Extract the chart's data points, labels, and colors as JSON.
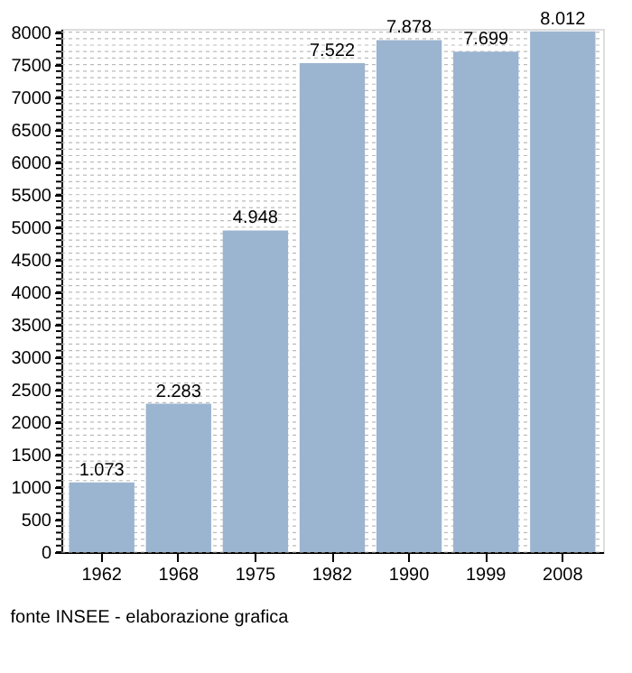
{
  "chart_data": {
    "type": "bar",
    "categories": [
      "1962",
      "1968",
      "1975",
      "1982",
      "1990",
      "1999",
      "2008"
    ],
    "values": [
      1073,
      2283,
      4948,
      7522,
      7878,
      7699,
      8012
    ],
    "value_labels": [
      "1.073",
      "2.283",
      "4.948",
      "7.522",
      "7.878",
      "7.699",
      "8.012"
    ],
    "color": "#9bb4d0",
    "ylim": [
      0,
      8050
    ],
    "yticks": [
      0,
      {
        "value": 100,
        "label": null
      },
      {
        "value": 200,
        "label": null
      },
      {
        "value": 300,
        "label": null
      },
      {
        "value": 400,
        "label": null
      },
      500,
      {
        "value": 600,
        "label": null
      },
      {
        "value": 700,
        "label": null
      },
      {
        "value": 800,
        "label": null
      },
      {
        "value": 900,
        "label": null
      },
      1000,
      {
        "value": 1100,
        "label": null
      },
      {
        "value": 1200,
        "label": null
      },
      {
        "value": 1300,
        "label": null
      },
      {
        "value": 1400,
        "label": null
      },
      1500,
      {
        "value": 1600,
        "label": null
      },
      {
        "value": 1700,
        "label": null
      },
      {
        "value": 1800,
        "label": null
      },
      {
        "value": 1900,
        "label": null
      },
      2000,
      {
        "value": 2100,
        "label": null
      },
      {
        "value": 2200,
        "label": null
      },
      {
        "value": 2300,
        "label": null
      },
      {
        "value": 2400,
        "label": null
      },
      2500,
      {
        "value": 2600,
        "label": null
      },
      {
        "value": 2700,
        "label": null
      },
      {
        "value": 2800,
        "label": null
      },
      {
        "value": 2900,
        "label": null
      },
      3000,
      {
        "value": 3100,
        "label": null
      },
      {
        "value": 3200,
        "label": null
      },
      {
        "value": 3300,
        "label": null
      },
      {
        "value": 3400,
        "label": null
      },
      3500,
      {
        "value": 3600,
        "label": null
      },
      {
        "value": 3700,
        "label": null
      },
      {
        "value": 3800,
        "label": null
      },
      {
        "value": 3900,
        "label": null
      },
      4000,
      {
        "value": 4100,
        "label": null
      },
      {
        "value": 4200,
        "label": null
      },
      {
        "value": 4300,
        "label": null
      },
      {
        "value": 4400,
        "label": null
      },
      4500,
      {
        "value": 4600,
        "label": null
      },
      {
        "value": 4700,
        "label": null
      },
      {
        "value": 4800,
        "label": null
      },
      {
        "value": 4900,
        "label": null
      },
      5000,
      {
        "value": 5100,
        "label": null
      },
      {
        "value": 5200,
        "label": null
      },
      {
        "value": 5300,
        "label": null
      },
      {
        "value": 5400,
        "label": null
      },
      5500,
      {
        "value": 5600,
        "label": null
      },
      {
        "value": 5700,
        "label": null
      },
      {
        "value": 5800,
        "label": null
      },
      {
        "value": 5900,
        "label": null
      },
      6000,
      {
        "value": 6100,
        "label": null
      },
      {
        "value": 6200,
        "label": null
      },
      {
        "value": 6300,
        "label": null
      },
      {
        "value": 6400,
        "label": null
      },
      6500,
      {
        "value": 6600,
        "label": null
      },
      {
        "value": 6700,
        "label": null
      },
      {
        "value": 6800,
        "label": null
      },
      {
        "value": 6900,
        "label": null
      },
      7000,
      {
        "value": 7100,
        "label": null
      },
      {
        "value": 7200,
        "label": null
      },
      {
        "value": 7300,
        "label": null
      },
      {
        "value": 7400,
        "label": null
      },
      7500,
      {
        "value": 7600,
        "label": null
      },
      {
        "value": 7700,
        "label": null
      },
      {
        "value": 7800,
        "label": null
      },
      {
        "value": 7900,
        "label": null
      },
      8000
    ],
    "grid": "y",
    "annotations": [
      "fonte INSEE - elaborazione grafica"
    ]
  }
}
